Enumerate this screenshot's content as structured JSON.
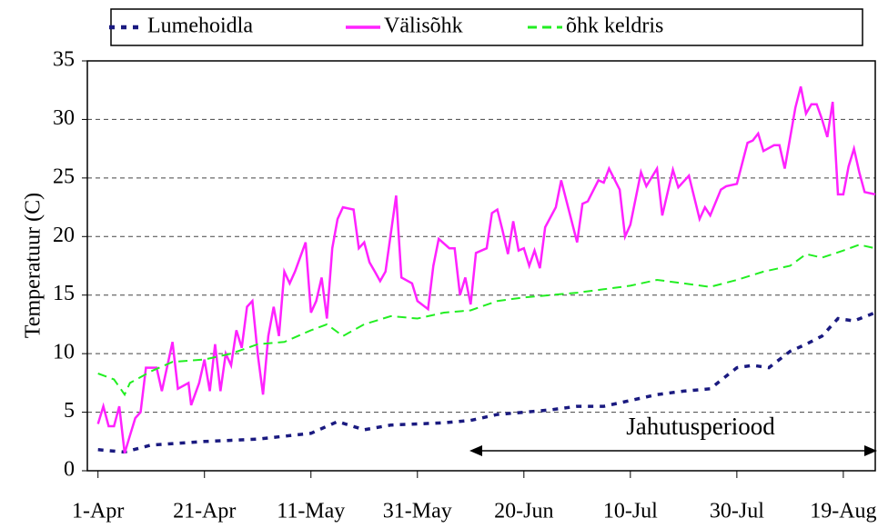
{
  "chart_data": {
    "type": "line",
    "ylabel": "Temperatuur (C)",
    "annotation": "Jahutusperiood",
    "xlim": [
      -2,
      146
    ],
    "xticks": [
      {
        "value": 0,
        "label": "1-Apr"
      },
      {
        "value": 20,
        "label": "21-Apr"
      },
      {
        "value": 40,
        "label": "11-May"
      },
      {
        "value": 60,
        "label": "31-May"
      },
      {
        "value": 80,
        "label": "20-Jun"
      },
      {
        "value": 100,
        "label": "10-Jul"
      },
      {
        "value": 120,
        "label": "30-Jul"
      },
      {
        "value": 140,
        "label": "19-Aug"
      }
    ],
    "ylim": [
      0,
      35
    ],
    "yticks": [
      0,
      5,
      10,
      15,
      20,
      25,
      30,
      35
    ],
    "grid": true,
    "series": [
      {
        "name": "Lumehoidla",
        "color": "#1a1a80",
        "style": "dotted",
        "x": [
          0,
          5,
          10,
          20,
          30,
          40,
          45,
          50,
          55,
          60,
          65,
          70,
          75,
          80,
          85,
          90,
          95,
          100,
          105,
          110,
          115,
          120,
          123,
          126,
          130,
          133,
          136,
          139,
          142,
          146
        ],
        "values": [
          1.8,
          1.6,
          2.2,
          2.5,
          2.7,
          3.2,
          4.2,
          3.5,
          3.9,
          4,
          4.1,
          4.3,
          4.8,
          5,
          5.2,
          5.5,
          5.5,
          6,
          6.5,
          6.8,
          7,
          8.8,
          9,
          8.8,
          10.2,
          10.8,
          11.5,
          13,
          12.8,
          13.5
        ]
      },
      {
        "name": "Välisõhk",
        "color": "#ff22ff",
        "style": "solid",
        "x": [
          0,
          1,
          2,
          3,
          4,
          5,
          6,
          7,
          8,
          9,
          11,
          12,
          14,
          15,
          17,
          17.5,
          19,
          20,
          21,
          22,
          23,
          24,
          25,
          26,
          27,
          28,
          29,
          30,
          31,
          32,
          33,
          34,
          35,
          36,
          37,
          39,
          40,
          41,
          42,
          43,
          44,
          45,
          46,
          48,
          49,
          50,
          51,
          52,
          53,
          54,
          56,
          57,
          59,
          60,
          62,
          63,
          64,
          66,
          67,
          68,
          69,
          70,
          71,
          73,
          74,
          75,
          76,
          77,
          78,
          79,
          80,
          81,
          82,
          83,
          84,
          86,
          87,
          90,
          91,
          92,
          94,
          95,
          96,
          98,
          99,
          100,
          102,
          103,
          105,
          106,
          108,
          109,
          111,
          113,
          114,
          115,
          117,
          118,
          120,
          122,
          123,
          124,
          125,
          127,
          128,
          129,
          131,
          132,
          133,
          134,
          135,
          136,
          137,
          138,
          139,
          140,
          141,
          142,
          143,
          144,
          146
        ],
        "values": [
          4,
          5.5,
          3.8,
          3.8,
          5.5,
          1.5,
          3,
          4.5,
          5,
          8.8,
          8.8,
          6.8,
          11,
          7,
          7.5,
          5.6,
          7.5,
          9.5,
          6.8,
          10.8,
          6.8,
          10,
          9,
          12,
          10.5,
          14,
          14.5,
          10,
          6.5,
          11.5,
          14,
          11.5,
          17,
          16,
          17,
          19.5,
          13.5,
          14.5,
          16.5,
          13,
          19,
          21.5,
          22.5,
          22.3,
          19,
          19.5,
          17.8,
          17,
          16.2,
          17,
          23.5,
          16.5,
          16,
          14.5,
          13.8,
          17.5,
          19.8,
          19,
          19,
          15,
          16.5,
          14.2,
          18.6,
          19,
          22,
          22.3,
          20.5,
          18.5,
          21.3,
          18.8,
          19,
          17.5,
          18.8,
          17.3,
          20.8,
          22.5,
          24.8,
          19.5,
          22.8,
          23,
          24.8,
          24.6,
          25.8,
          24,
          20,
          21,
          25.5,
          24.3,
          25.8,
          21.8,
          25.7,
          24.2,
          25.2,
          21.5,
          22.5,
          21.8,
          24,
          24.3,
          24.5,
          28,
          28.2,
          28.8,
          27.3,
          27.8,
          27.8,
          25.8,
          31,
          32.8,
          30.5,
          31.3,
          31.3,
          30,
          28.5,
          31.5,
          23.6,
          23.6,
          26,
          27.5,
          25.5,
          23.8,
          23.6
        ]
      },
      {
        "name": "õhk keldris",
        "color": "#22ee22",
        "style": "dashed",
        "x": [
          0,
          3,
          5,
          6,
          10,
          14,
          20,
          25,
          30,
          35,
          40,
          43,
          46,
          50,
          55,
          60,
          65,
          70,
          75,
          80,
          85,
          90,
          95,
          100,
          105,
          110,
          115,
          120,
          125,
          130,
          133,
          136,
          140,
          143,
          146
        ],
        "values": [
          8.3,
          7.8,
          6.5,
          7.5,
          8.5,
          9.3,
          9.5,
          10,
          10.8,
          11,
          12,
          12.5,
          11.5,
          12.5,
          13.2,
          13,
          13.5,
          13.7,
          14.5,
          14.8,
          15,
          15.2,
          15.5,
          15.8,
          16.3,
          16,
          15.7,
          16.3,
          17,
          17.5,
          18.5,
          18.2,
          18.8,
          19.3,
          19
        ]
      }
    ]
  }
}
